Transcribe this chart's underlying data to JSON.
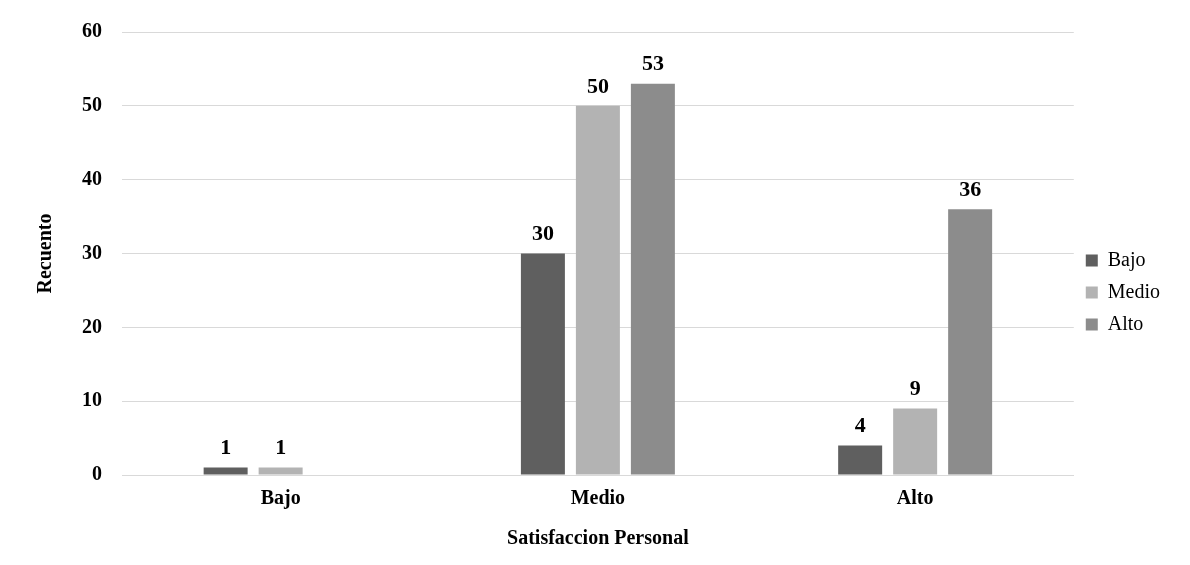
{
  "chart_data": {
    "type": "bar",
    "xlabel": "Satisfaccion Personal",
    "ylabel": "Recuento",
    "categories": [
      "Bajo",
      "Medio",
      "Alto"
    ],
    "series": [
      {
        "name": "Bajo",
        "color": "#5f5f5f",
        "values": [
          1,
          30,
          4
        ]
      },
      {
        "name": "Medio",
        "color": "#b3b3b3",
        "values": [
          1,
          50,
          9
        ]
      },
      {
        "name": "Alto",
        "color": "#8c8c8c",
        "values": [
          null,
          53,
          36
        ]
      }
    ],
    "ylim": [
      0,
      60
    ],
    "yticks": [
      0,
      10,
      20,
      30,
      40,
      50,
      60
    ],
    "grid": "y",
    "legend": "right",
    "data_labels": true
  }
}
